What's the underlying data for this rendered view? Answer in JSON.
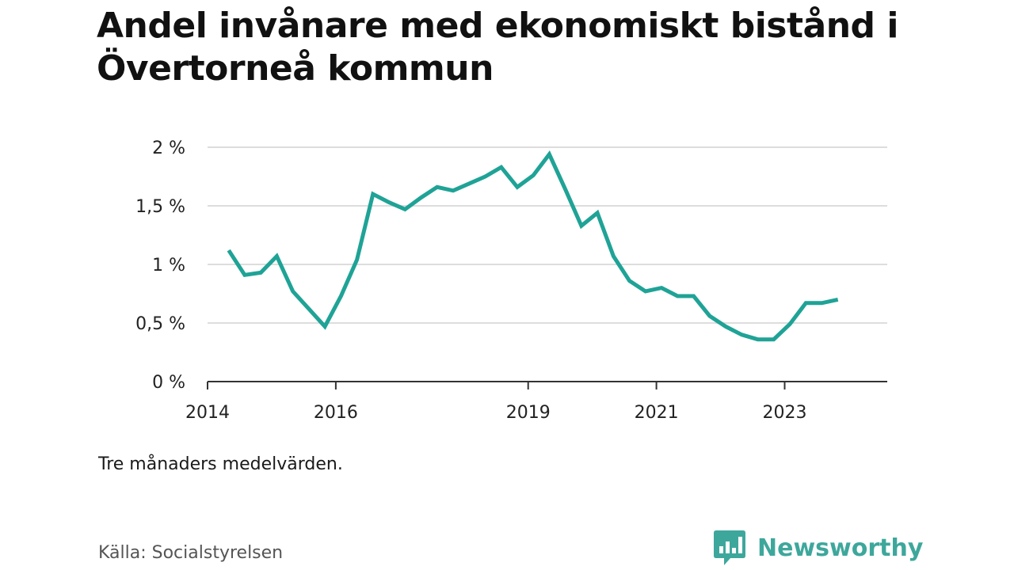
{
  "title": "Andel invånare med ekonomiskt bistånd i Övertorneå kommun",
  "note": "Tre månaders medelvärden.",
  "source": "Källa: Socialstyrelsen",
  "brand": {
    "name": "Newsworthy",
    "icon": "chat-bar-chart-icon",
    "color": "#3ea79c"
  },
  "colors": {
    "line": "#1fa396",
    "grid": "#dddddd",
    "axis": "#333333"
  },
  "chart_data": {
    "type": "line",
    "title": "Andel invånare med ekonomiskt bistånd i Övertorneå kommun",
    "xlabel": "",
    "ylabel": "",
    "grid": true,
    "xlim": [
      2014.0,
      2024.6
    ],
    "ylim": [
      0,
      2
    ],
    "x_ticks": [
      {
        "value": 2014,
        "label": "2014"
      },
      {
        "value": 2016,
        "label": "2016"
      },
      {
        "value": 2019,
        "label": "2019"
      },
      {
        "value": 2021,
        "label": "2021"
      },
      {
        "value": 2023,
        "label": "2023"
      }
    ],
    "y_ticks": [
      {
        "value": 0,
        "label": "0 %"
      },
      {
        "value": 0.5,
        "label": "0,5 %"
      },
      {
        "value": 1,
        "label": "1 %"
      },
      {
        "value": 1.5,
        "label": "1,5 %"
      },
      {
        "value": 2,
        "label": "2 %"
      }
    ],
    "series": [
      {
        "x": [
          2014.33,
          2014.58,
          2014.83,
          2015.08,
          2015.33,
          2015.58,
          2015.83,
          2016.08,
          2016.33,
          2016.58,
          2016.83,
          2017.08,
          2017.33,
          2017.58,
          2017.83,
          2018.08,
          2018.33,
          2018.58,
          2018.83,
          2019.08,
          2019.33,
          2019.58,
          2019.83,
          2020.08,
          2020.33,
          2020.58,
          2020.83,
          2021.08,
          2021.33,
          2021.58,
          2021.83,
          2022.08,
          2022.33,
          2022.58,
          2022.83,
          2023.08,
          2023.33,
          2023.58,
          2023.83
        ],
        "values": [
          1.12,
          0.91,
          0.93,
          1.07,
          0.77,
          0.62,
          0.47,
          0.73,
          1.04,
          1.6,
          1.53,
          1.47,
          1.57,
          1.66,
          1.63,
          1.69,
          1.75,
          1.83,
          1.66,
          1.76,
          1.94,
          1.64,
          1.33,
          1.44,
          1.07,
          0.86,
          0.77,
          0.8,
          0.73,
          0.73,
          0.56,
          0.47,
          0.4,
          0.36,
          0.36,
          0.49,
          0.67,
          0.67,
          0.7
        ]
      }
    ]
  }
}
